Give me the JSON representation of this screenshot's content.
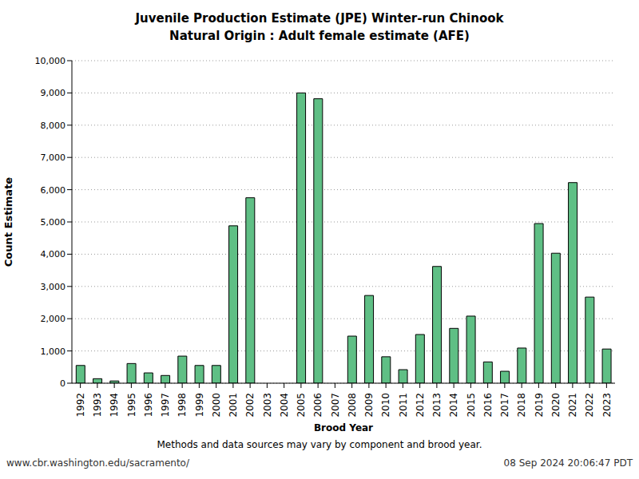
{
  "chart_data": {
    "type": "bar",
    "title": "Juvenile Production Estimate (JPE) Winter-run Chinook",
    "subtitle": "Natural Origin : Adult female estimate (AFE)",
    "x_label": "Brood Year",
    "y_label": "Count Estimate",
    "annotations": [
      "Methods and data sources may vary by component and brood year.",
      "www.cbr.washington.edu/sacramento/",
      "08 Sep 2024 20:06:47 PDT"
    ],
    "categories": [
      "1992",
      "1993",
      "1994",
      "1995",
      "1996",
      "1997",
      "1998",
      "1999",
      "2000",
      "2001",
      "2002",
      "2003",
      "2004",
      "2005",
      "2006",
      "2007",
      "2008",
      "2009",
      "2010",
      "2011",
      "2012",
      "2013",
      "2014",
      "2015",
      "2016",
      "2017",
      "2018",
      "2019",
      "2020",
      "2021",
      "2022",
      "2023"
    ],
    "values": [
      550,
      140,
      70,
      610,
      320,
      240,
      840,
      550,
      550,
      4880,
      5750,
      null,
      null,
      9000,
      8820,
      null,
      1460,
      2720,
      820,
      420,
      1510,
      3620,
      1700,
      2080,
      660,
      370,
      1090,
      4950,
      4030,
      6220,
      2670,
      1060
    ],
    "color": "#5fbf85",
    "ylim": [
      0,
      10000
    ],
    "yticks": [
      0,
      {
        "value": 1000,
        "label": "1,000"
      },
      {
        "value": 2000,
        "label": "2,000"
      },
      {
        "value": 3000,
        "label": "3,000"
      },
      {
        "value": 4000,
        "label": "4,000"
      },
      {
        "value": 5000,
        "label": "5,000"
      },
      {
        "value": 6000,
        "label": "6,000"
      },
      {
        "value": 7000,
        "label": "7,000"
      },
      {
        "value": 8000,
        "label": "8,000"
      },
      {
        "value": 9000,
        "label": "9,000"
      },
      {
        "value": 10000,
        "label": "10,000"
      }
    ],
    "grid": true
  }
}
